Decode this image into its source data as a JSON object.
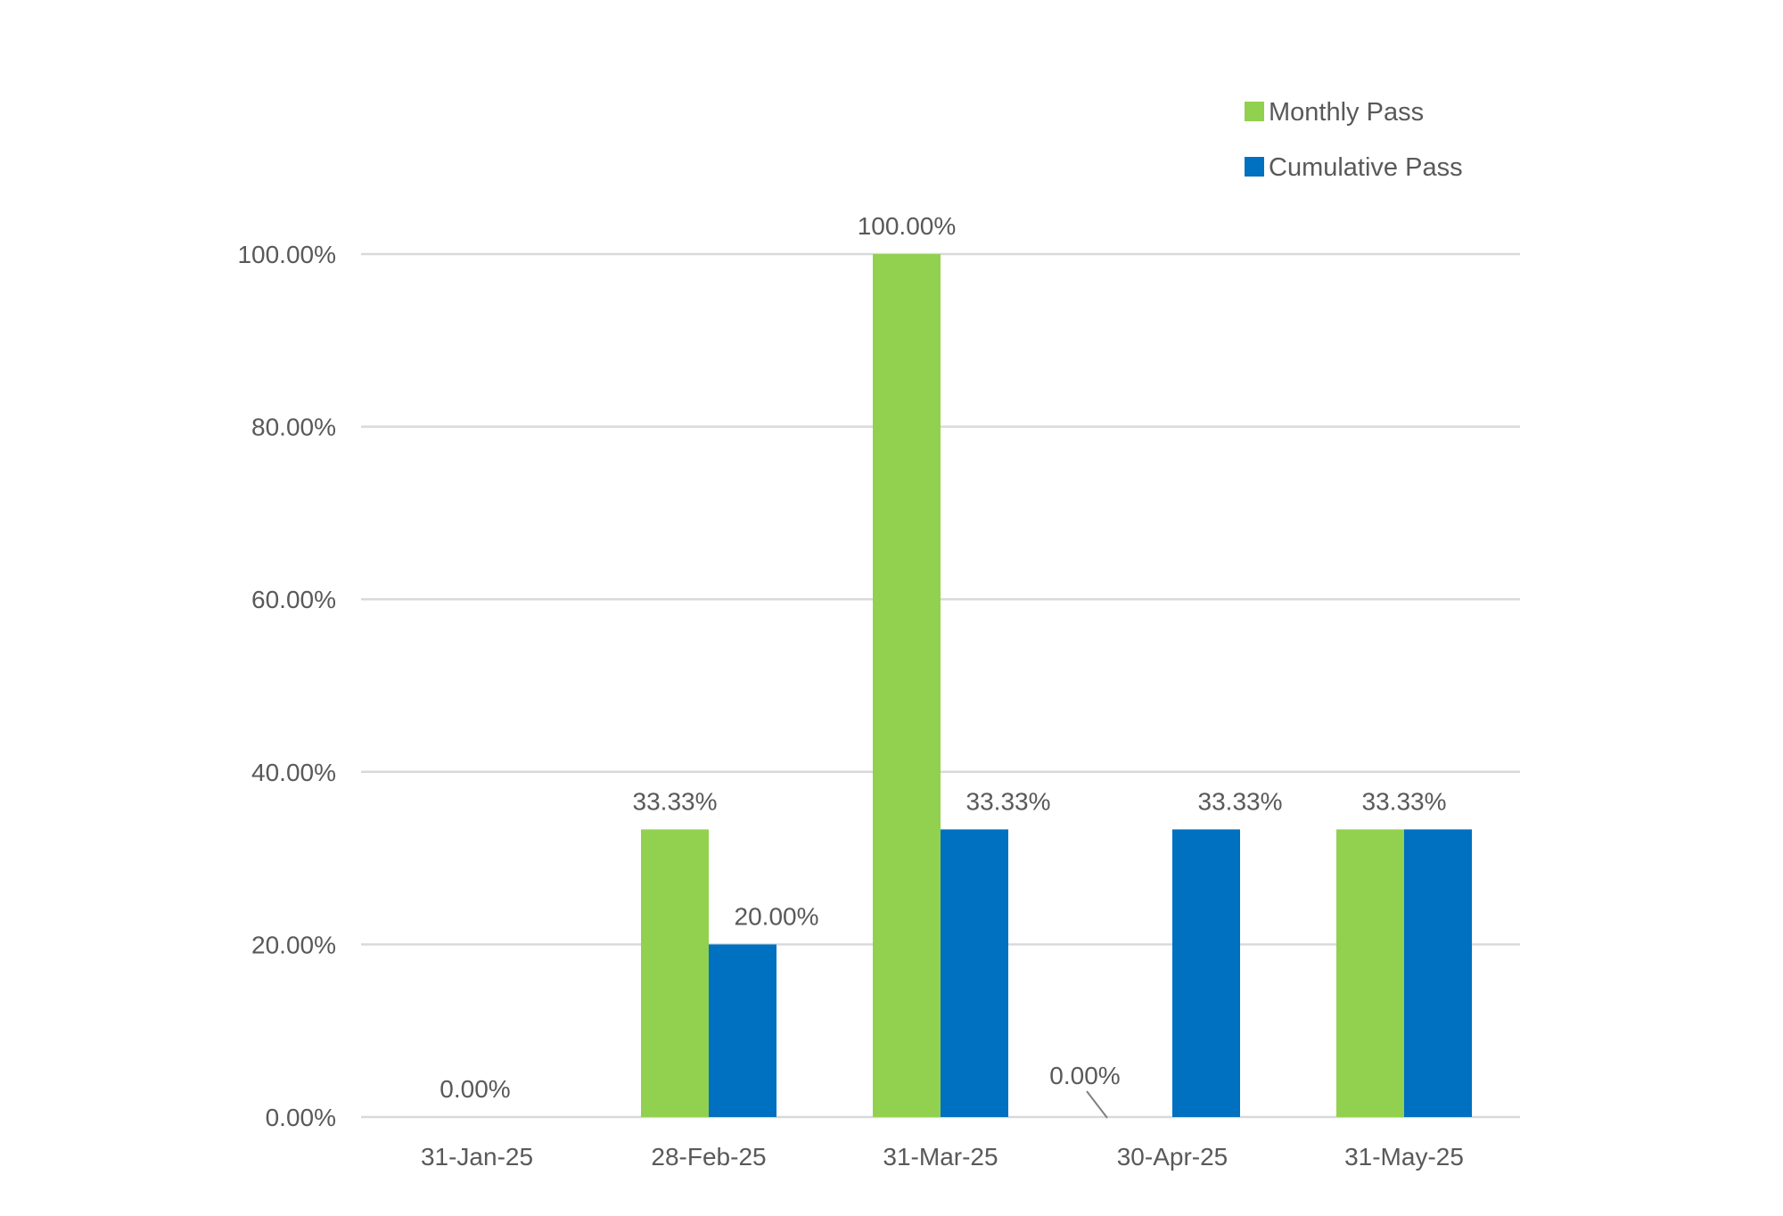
{
  "chart_data": {
    "type": "bar",
    "title": "",
    "xlabel": "",
    "ylabel": "",
    "categories": [
      "31-Jan-25",
      "28-Feb-25",
      "31-Mar-25",
      "30-Apr-25",
      "31-May-25"
    ],
    "series": [
      {
        "name": "Monthly Pass",
        "color": "#92d050",
        "values": [
          0,
          33.33,
          100,
          0,
          33.33
        ],
        "labels": [
          "0.00%",
          "33.33%",
          "100.00%",
          "0.00%",
          "33.33%"
        ]
      },
      {
        "name": "Cumulative Pass",
        "color": "#0070c0",
        "values": [
          0,
          20,
          33.33,
          33.33,
          33.33
        ],
        "labels": [
          "",
          "20.00%",
          "33.33%",
          "33.33%",
          ""
        ]
      }
    ],
    "ylim": [
      0,
      100
    ],
    "yticks": [
      "0.00%",
      "20.00%",
      "40.00%",
      "60.00%",
      "80.00%",
      "100.00%"
    ],
    "grid": true,
    "legend": "top-right",
    "gridline_color": "#d9d9d9",
    "text_color": "#595959"
  }
}
